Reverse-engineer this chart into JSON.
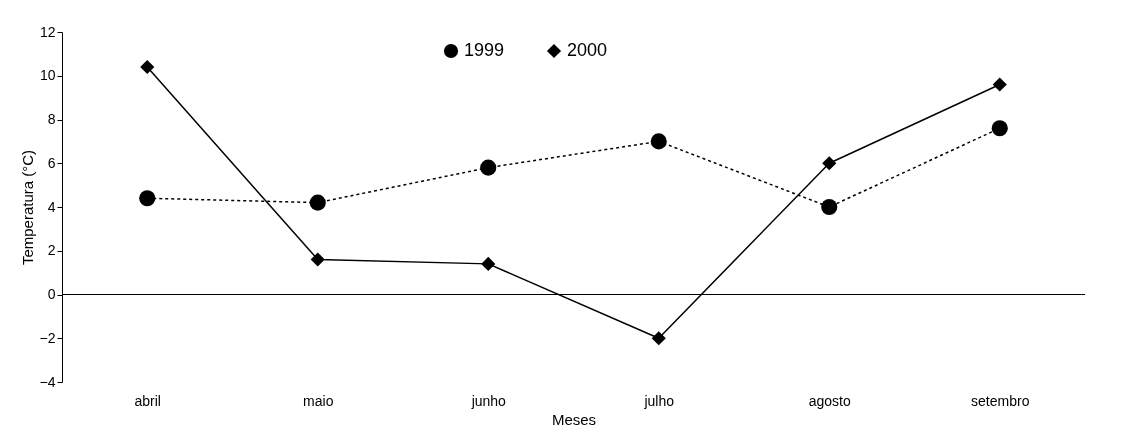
{
  "chart_data": {
    "type": "line",
    "xlabel": "Meses",
    "ylabel": "Temperatura (°C)",
    "categories": [
      "abril",
      "maio",
      "junho",
      "julho",
      "agosto",
      "setembro"
    ],
    "series": [
      {
        "name": "1999",
        "color": "#000000",
        "marker": "circle",
        "line_style": "dotted",
        "values": [
          4.4,
          4.2,
          5.8,
          7.0,
          4.0,
          7.6
        ]
      },
      {
        "name": "2000",
        "color": "#000000",
        "marker": "diamond",
        "line_style": "solid",
        "values": [
          10.4,
          1.6,
          1.4,
          -2.0,
          6.0,
          9.6
        ]
      }
    ],
    "ylim": [
      -4,
      12
    ],
    "yticks": [
      -4,
      -2,
      0,
      2,
      4,
      6,
      8,
      10,
      12
    ],
    "ref_lines": [
      {
        "axis": "y",
        "value": 0
      }
    ],
    "grid": false,
    "legend": "top"
  }
}
